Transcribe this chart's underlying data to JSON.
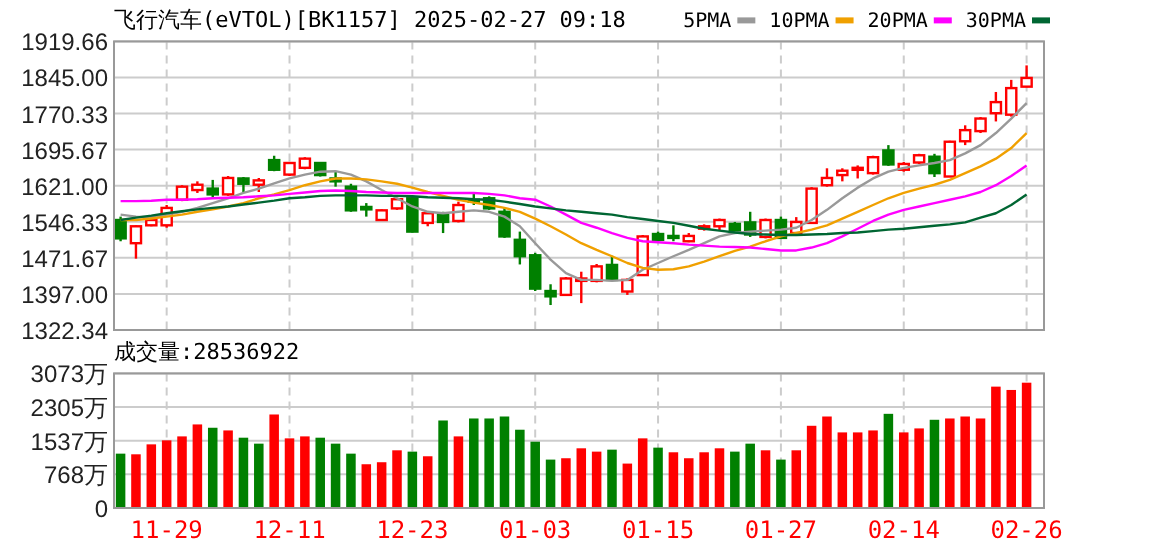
{
  "chart_data": [
    {
      "type": "candlestick",
      "title": "飞行汽车(eVTOL)[BK1157] 2025-02-27 09:18",
      "categories": [
        null,
        null,
        null,
        null,
        null,
        null,
        null,
        null,
        null,
        null,
        null,
        null,
        null,
        null,
        null,
        null,
        null,
        null,
        null,
        null,
        null,
        null,
        null,
        null,
        null,
        null,
        null,
        null,
        null,
        null,
        null,
        null,
        null,
        null,
        null,
        null,
        null,
        null,
        null,
        null,
        null,
        null,
        null,
        null,
        null,
        null,
        null,
        null,
        null,
        null,
        null,
        null,
        null,
        null,
        null,
        null,
        null,
        null,
        null,
        null
      ],
      "ohlc": [
        [
          1550,
          1557,
          1506,
          1512
        ],
        [
          1502,
          1539,
          1470,
          1537
        ],
        [
          1539,
          1557,
          1537,
          1550
        ],
        [
          1539,
          1581,
          1534,
          1575
        ],
        [
          1592,
          1622,
          1589,
          1619
        ],
        [
          1612,
          1630,
          1606,
          1623
        ],
        [
          1615,
          1633,
          1597,
          1603
        ],
        [
          1603,
          1641,
          1600,
          1637
        ],
        [
          1636,
          1639,
          1606,
          1625
        ],
        [
          1623,
          1637,
          1608,
          1632
        ],
        [
          1674,
          1683,
          1651,
          1654
        ],
        [
          1644,
          1670,
          1641,
          1668
        ],
        [
          1658,
          1680,
          1655,
          1677
        ],
        [
          1668,
          1670,
          1640,
          1643
        ],
        [
          1636,
          1650,
          1619,
          1630
        ],
        [
          1619,
          1625,
          1567,
          1570
        ],
        [
          1577,
          1585,
          1557,
          1572
        ],
        [
          1550,
          1572,
          1549,
          1570
        ],
        [
          1574,
          1596,
          1571,
          1593
        ],
        [
          1595,
          1599,
          1524,
          1526
        ],
        [
          1544,
          1568,
          1537,
          1564
        ],
        [
          1560,
          1567,
          1523,
          1546
        ],
        [
          1548,
          1588,
          1545,
          1581
        ],
        [
          1592,
          1608,
          1581,
          1588
        ],
        [
          1595,
          1599,
          1571,
          1574
        ],
        [
          1567,
          1575,
          1513,
          1516
        ],
        [
          1509,
          1526,
          1458,
          1475
        ],
        [
          1477,
          1482,
          1403,
          1408
        ],
        [
          1403,
          1417,
          1374,
          1392
        ],
        [
          1395,
          1432,
          1393,
          1429
        ],
        [
          1424,
          1443,
          1378,
          1429
        ],
        [
          1424,
          1459,
          1421,
          1454
        ],
        [
          1457,
          1476,
          1425,
          1426
        ],
        [
          1402,
          1429,
          1395,
          1426
        ],
        [
          1436,
          1519,
          1435,
          1516
        ],
        [
          1521,
          1526,
          1508,
          1509
        ],
        [
          1517,
          1539,
          1506,
          1515
        ],
        [
          1506,
          1523,
          1504,
          1517
        ],
        [
          1532,
          1541,
          1528,
          1537
        ],
        [
          1537,
          1553,
          1528,
          1550
        ],
        [
          1542,
          1546,
          1526,
          1528
        ],
        [
          1545,
          1567,
          1515,
          1520
        ],
        [
          1515,
          1553,
          1512,
          1550
        ],
        [
          1550,
          1557,
          1512,
          1513
        ],
        [
          1523,
          1556,
          1520,
          1546
        ],
        [
          1544,
          1618,
          1542,
          1615
        ],
        [
          1622,
          1657,
          1619,
          1637
        ],
        [
          1643,
          1657,
          1630,
          1652
        ],
        [
          1655,
          1663,
          1636,
          1658
        ],
        [
          1647,
          1683,
          1644,
          1680
        ],
        [
          1694,
          1705,
          1662,
          1665
        ],
        [
          1654,
          1670,
          1650,
          1666
        ],
        [
          1669,
          1687,
          1666,
          1684
        ],
        [
          1681,
          1687,
          1639,
          1647
        ],
        [
          1640,
          1714,
          1639,
          1712
        ],
        [
          1713,
          1746,
          1705,
          1736
        ],
        [
          1734,
          1763,
          1730,
          1760
        ],
        [
          1771,
          1815,
          1754,
          1794
        ],
        [
          1768,
          1840,
          1764,
          1823
        ],
        [
          1826,
          1870,
          1825,
          1844
        ]
      ],
      "series": [
        {
          "name": "5PMA",
          "type": "line",
          "color": "#999999",
          "values": [
            1561,
            1557,
            1556,
            1561,
            1567,
            1575,
            1585,
            1595,
            1606,
            1615,
            1626,
            1636,
            1644,
            1650,
            1651,
            1644,
            1630,
            1612,
            1595,
            1578,
            1567,
            1564,
            1567,
            1570,
            1567,
            1557,
            1537,
            1502,
            1468,
            1440,
            1426,
            1426,
            1424,
            1426,
            1447,
            1461,
            1475,
            1488,
            1502,
            1516,
            1523,
            1526,
            1528,
            1530,
            1534,
            1550,
            1571,
            1595,
            1617,
            1636,
            1650,
            1658,
            1663,
            1668,
            1674,
            1688,
            1705,
            1730,
            1760,
            1792
          ]
        },
        {
          "name": "10PMA",
          "type": "line",
          "color": "#f0a000",
          "values": [
            1550,
            1550,
            1553,
            1557,
            1561,
            1567,
            1572,
            1578,
            1585,
            1595,
            1603,
            1612,
            1622,
            1630,
            1636,
            1636,
            1634,
            1630,
            1625,
            1617,
            1608,
            1600,
            1592,
            1586,
            1581,
            1575,
            1567,
            1553,
            1537,
            1520,
            1502,
            1488,
            1475,
            1461,
            1451,
            1447,
            1448,
            1454,
            1464,
            1475,
            1486,
            1495,
            1506,
            1516,
            1523,
            1530,
            1539,
            1553,
            1567,
            1581,
            1595,
            1606,
            1615,
            1623,
            1633,
            1647,
            1661,
            1677,
            1699,
            1730
          ]
        },
        {
          "name": "20PMA",
          "type": "line",
          "color": "#ff00ff",
          "values": [
            1589,
            1589,
            1590,
            1592,
            1592,
            1593,
            1595,
            1596,
            1597,
            1599,
            1601,
            1604,
            1607,
            1610,
            1611,
            1610,
            1608,
            1607,
            1606,
            1606,
            1606,
            1606,
            1606,
            1606,
            1604,
            1601,
            1595,
            1592,
            1578,
            1561,
            1544,
            1534,
            1523,
            1513,
            1506,
            1504,
            1502,
            1499,
            1497,
            1495,
            1494,
            1493,
            1490,
            1487,
            1487,
            1493,
            1502,
            1516,
            1532,
            1548,
            1561,
            1571,
            1578,
            1585,
            1592,
            1599,
            1608,
            1622,
            1641,
            1663
          ]
        },
        {
          "name": "30PMA",
          "type": "line",
          "color": "#006633",
          "values": [
            1550,
            1555,
            1559,
            1564,
            1568,
            1572,
            1575,
            1578,
            1582,
            1586,
            1590,
            1595,
            1597,
            1600,
            1601,
            1601,
            1601,
            1600,
            1600,
            1599,
            1597,
            1596,
            1595,
            1593,
            1592,
            1588,
            1583,
            1578,
            1574,
            1570,
            1567,
            1564,
            1561,
            1556,
            1552,
            1548,
            1544,
            1538,
            1532,
            1528,
            1524,
            1521,
            1520,
            1519,
            1519,
            1520,
            1521,
            1523,
            1524,
            1527,
            1530,
            1532,
            1535,
            1538,
            1541,
            1545,
            1555,
            1564,
            1581,
            1603
          ]
        }
      ],
      "ylim": [
        1322.34,
        1919.66
      ],
      "yticks": [
        1322.34,
        {
          "value": 1397,
          "label": "1397.00"
        },
        1471.67,
        1546.33,
        {
          "value": 1621,
          "label": "1621.00"
        },
        1695.67,
        1770.33,
        {
          "value": 1845,
          "label": "1845.00"
        },
        1919.66
      ],
      "grid": true,
      "legend": "top right",
      "tick_labels": "y"
    },
    {
      "type": "bar",
      "title": "成交量:28536922",
      "categories": [
        null,
        null,
        null,
        "11-29",
        null,
        null,
        null,
        null,
        null,
        null,
        null,
        "12-11",
        null,
        null,
        null,
        null,
        null,
        null,
        null,
        "12-23",
        null,
        null,
        null,
        null,
        null,
        null,
        null,
        "01-03",
        null,
        null,
        null,
        null,
        null,
        null,
        null,
        "01-15",
        null,
        null,
        null,
        null,
        null,
        null,
        null,
        "01-27",
        null,
        null,
        null,
        null,
        null,
        null,
        null,
        "02-14",
        null,
        null,
        null,
        null,
        null,
        null,
        null,
        "02-26"
      ],
      "values": [
        1241,
        1226,
        1453,
        1544,
        1635,
        1908,
        1832,
        1771,
        1605,
        1469,
        2135,
        1590,
        1635,
        1605,
        1469,
        1241,
        999,
        1045,
        1317,
        1287,
        1181,
        1998,
        1635,
        2044,
        2044,
        2089,
        1787,
        1514,
        1105,
        1136,
        1363,
        1287,
        1332,
        1014,
        1590,
        1378,
        1272,
        1136,
        1272,
        1363,
        1287,
        1469,
        1317,
        1105,
        1317,
        1877,
        2089,
        1726,
        1726,
        1771,
        2150,
        1726,
        1817,
        2014,
        2044,
        2089,
        2044,
        2771,
        2695,
        2861
      ],
      "colors": [
        "#008000",
        "#ff0000",
        "#ff0000",
        "#ff0000",
        "#ff0000",
        "#ff0000",
        "#008000",
        "#ff0000",
        "#008000",
        "#008000",
        "#ff0000",
        "#ff0000",
        "#ff0000",
        "#008000",
        "#008000",
        "#008000",
        "#ff0000",
        "#ff0000",
        "#ff0000",
        "#008000",
        "#ff0000",
        "#008000",
        "#ff0000",
        "#008000",
        "#008000",
        "#008000",
        "#008000",
        "#008000",
        "#008000",
        "#ff0000",
        "#ff0000",
        "#ff0000",
        "#008000",
        "#ff0000",
        "#ff0000",
        "#008000",
        "#ff0000",
        "#ff0000",
        "#ff0000",
        "#ff0000",
        "#008000",
        "#008000",
        "#ff0000",
        "#008000",
        "#ff0000",
        "#ff0000",
        "#ff0000",
        "#ff0000",
        "#ff0000",
        "#ff0000",
        "#008000",
        "#ff0000",
        "#ff0000",
        "#008000",
        "#ff0000",
        "#ff0000",
        "#ff0000",
        "#ff0000",
        "#ff0000",
        "#ff0000"
      ],
      "ylim": [
        0,
        3073
      ],
      "yticks": [
        0,
        {
          "value": 768,
          "label": "768万"
        },
        {
          "value": 1537,
          "label": "1537万"
        },
        {
          "value": 2305,
          "label": "2305万"
        },
        {
          "value": 3073,
          "label": "3073万"
        }
      ],
      "grid": true
    }
  ]
}
